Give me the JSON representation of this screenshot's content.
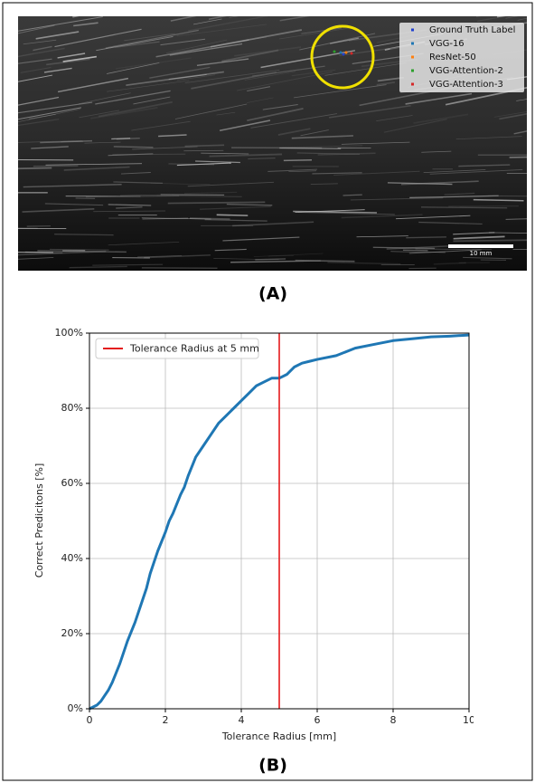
{
  "image_panel": {
    "label": "(A)",
    "scale_bar": "10 mm",
    "legend": [
      {
        "name": "Ground Truth Label",
        "color": "#1f3fd0"
      },
      {
        "name": "VGG-16",
        "color": "#1f77b4"
      },
      {
        "name": "ResNet-50",
        "color": "#ff7f0e"
      },
      {
        "name": "VGG-Attention-2",
        "color": "#2ca02c"
      },
      {
        "name": "VGG-Attention-3",
        "color": "#d62728"
      }
    ]
  },
  "chart_data": {
    "type": "line",
    "panel_label": "(B)",
    "x_label": "Tolerance Radius [mm]",
    "y_label": "Correct Predicitons [%]",
    "x": [
      0,
      0.2,
      0.3,
      0.5,
      0.6,
      0.8,
      1.0,
      1.2,
      1.4,
      1.5,
      1.6,
      1.7,
      1.8,
      2.0,
      2.1,
      2.2,
      2.4,
      2.5,
      2.6,
      2.8,
      3.0,
      3.2,
      3.4,
      3.6,
      3.8,
      4.0,
      4.2,
      4.4,
      4.6,
      4.8,
      5.0,
      5.2,
      5.4,
      5.6,
      5.8,
      6.0,
      6.5,
      7.0,
      7.5,
      8.0,
      8.5,
      9.0,
      9.5,
      10
    ],
    "series": [
      {
        "color": "#1f77b4",
        "values": [
          0,
          1,
          2,
          5,
          7,
          12,
          18,
          23,
          29,
          32,
          36,
          39,
          42,
          47,
          50,
          52,
          57,
          59,
          62,
          67,
          70,
          73,
          76,
          78,
          80,
          82,
          84,
          86,
          87,
          88,
          88,
          89,
          91,
          92,
          92.5,
          93,
          94,
          96,
          97,
          98,
          98.5,
          99,
          99.2,
          99.5
        ]
      }
    ],
    "vline": {
      "x": 5,
      "label": "Tolerance Radius at 5 mm",
      "color": "#e41a1c"
    },
    "xlim": [
      0,
      10
    ],
    "ylim": [
      0,
      100
    ],
    "xticks": [
      0,
      2,
      4,
      6,
      8,
      10
    ],
    "yticks": [
      {
        "value": 0,
        "label": "0%"
      },
      {
        "value": 20,
        "label": "20%"
      },
      {
        "value": 40,
        "label": "40%"
      },
      {
        "value": 60,
        "label": "60%"
      },
      {
        "value": 80,
        "label": "80%"
      },
      {
        "value": 100,
        "label": "100%"
      }
    ],
    "grid": true,
    "legend_position": "upper left"
  }
}
